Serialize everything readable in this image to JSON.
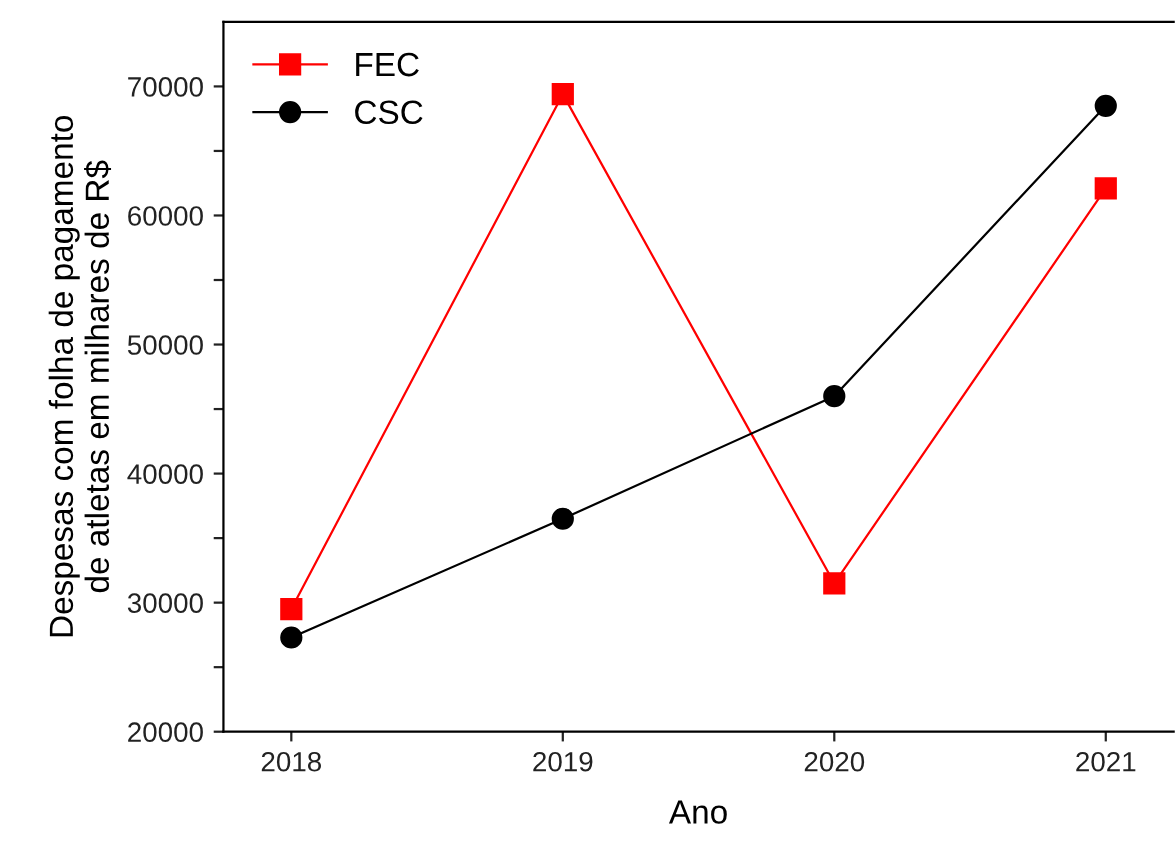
{
  "chart_data": {
    "type": "line",
    "xlabel": "Ano",
    "ylabel": "Despesas com folha de pagamento\nde atletas em milhares de R$",
    "x": [
      2018,
      2019,
      2020,
      2021
    ],
    "series": [
      {
        "name": "FEC",
        "color": "#ff0000",
        "marker": "square",
        "values": [
          29500,
          69400,
          31500,
          62100
        ]
      },
      {
        "name": "CSC",
        "color": "#000000",
        "marker": "circle",
        "values": [
          27300,
          36500,
          46000,
          68500
        ]
      }
    ],
    "xlim": [
      2017.75,
      2021.25
    ],
    "xticks": [
      2018,
      2019,
      2020,
      2021
    ],
    "ylim": [
      20000,
      75000
    ],
    "yticks": [
      20000,
      {
        "value": 25000,
        "label": null
      },
      30000,
      {
        "value": 35000,
        "label": null
      },
      40000,
      {
        "value": 45000,
        "label": null
      },
      50000,
      {
        "value": 55000,
        "label": null
      },
      60000,
      {
        "value": 65000,
        "label": null
      },
      70000
    ],
    "grid": false,
    "legend": "top left",
    "line_style": "solid"
  }
}
